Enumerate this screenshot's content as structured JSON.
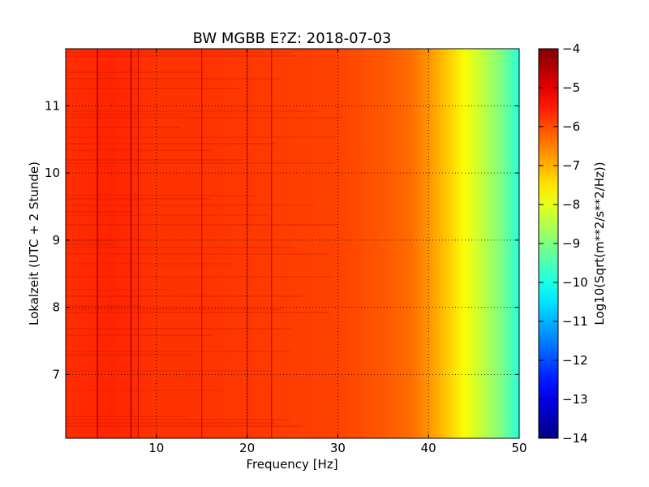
{
  "chart_data": {
    "type": "heatmap",
    "title": "BW MGBB E?Z: 2018-07-03",
    "xlabel": "Frequency [Hz]",
    "ylabel": "Lokalzeit (UTC + 2 Stunde)",
    "xlim": [
      0,
      50
    ],
    "ylim": [
      11.85,
      6.05
    ],
    "x_inverted": false,
    "y_inverted": true,
    "grid": true,
    "x_ticks": [
      10,
      20,
      30,
      40,
      50
    ],
    "y_ticks": [
      7,
      8,
      9,
      10,
      11
    ],
    "colorbar": {
      "label": "Log10(Sqrt(m**2/s**2/Hz))",
      "colormap": "jet",
      "range": [
        -14,
        -4
      ],
      "ticks": [
        -4,
        -5,
        -6,
        -7,
        -8,
        -9,
        -10,
        -11,
        -12,
        -13,
        -14
      ]
    },
    "spectrum_profile": {
      "frequency_hz": [
        0,
        5,
        10,
        15,
        20,
        25,
        30,
        35,
        38,
        40,
        42,
        44,
        46,
        48,
        50
      ],
      "log10_amplitude": [
        -5.7,
        -5.6,
        -5.75,
        -5.75,
        -5.8,
        -5.85,
        -5.9,
        -6.1,
        -6.3,
        -6.7,
        -7.2,
        -7.8,
        -8.4,
        -9.0,
        -9.9
      ]
    },
    "strong_lines_hz": [
      3.5,
      7.2,
      8.0,
      15.0,
      20.0,
      22.7
    ]
  }
}
